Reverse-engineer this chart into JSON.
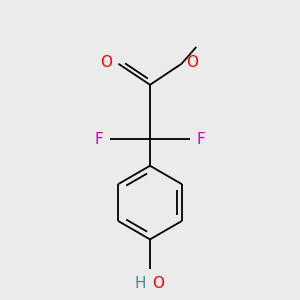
{
  "background_color": "#ebebeb",
  "bond_color": "#000000",
  "bond_width": 1.3,
  "atom_colors": {
    "O": "#ff0000",
    "F": "#cc00cc",
    "HO_H": "#4a8a8a",
    "HO_O": "#ff0000"
  },
  "font_size_atoms": 11,
  "font_size_small": 9,
  "xlim": [
    -1.1,
    1.1
  ],
  "ylim": [
    -1.5,
    1.3
  ]
}
